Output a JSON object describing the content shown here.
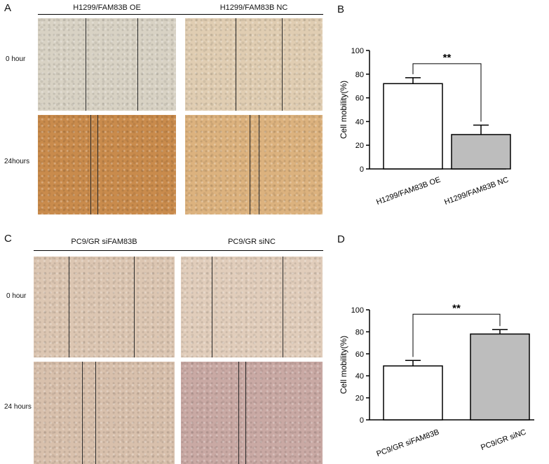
{
  "panels": {
    "A": {
      "letter": "A",
      "groups": [
        "H1299/FAM83B OE",
        "H1299/FAM83B NC"
      ],
      "rows": [
        "0 hour",
        "24hours"
      ]
    },
    "B": {
      "letter": "B"
    },
    "C": {
      "letter": "C",
      "groups": [
        "PC9/GR siFAM83B",
        "PC9/GR siNC"
      ],
      "rows": [
        "0 hour",
        "24 hours"
      ]
    },
    "D": {
      "letter": "D"
    }
  },
  "colors": {
    "bar_white": "#ffffff",
    "bar_gray": "#bdbdbd",
    "h1299_0h": "#d8d2c4",
    "h1299_nc_0h": "#e0cdb2",
    "h1299_24h": "#c98b4c",
    "h1299_nc_24h": "#dcb27e",
    "pc9_0h": "#dcc6b2",
    "pc9_nc_0h": "#e1cdbb",
    "pc9_24h": "#d8c0ac",
    "pc9_nc_24h": "#c9a9a4"
  },
  "chart_data": [
    {
      "panel": "B",
      "type": "bar",
      "categories": [
        "H1299/FAM83B OE",
        "H1299/FAM83B NC"
      ],
      "values": [
        72,
        29
      ],
      "errors": [
        5,
        8
      ],
      "bar_colors": [
        "#ffffff",
        "#bdbdbd"
      ],
      "ylabel": "Cell mobility(%)",
      "ylim": [
        0,
        100
      ],
      "yticks": [
        0,
        20,
        40,
        60,
        80,
        100
      ],
      "significance": "**"
    },
    {
      "panel": "D",
      "type": "bar",
      "categories": [
        "PC9/GR siFAM83B",
        "PC9/GR siNC"
      ],
      "values": [
        49,
        78
      ],
      "errors": [
        5,
        4
      ],
      "bar_colors": [
        "#ffffff",
        "#bdbdbd"
      ],
      "ylabel": "Cell mobility(%)",
      "ylim": [
        0,
        100
      ],
      "yticks": [
        0,
        20,
        40,
        60,
        80,
        100
      ],
      "significance": "**"
    }
  ]
}
